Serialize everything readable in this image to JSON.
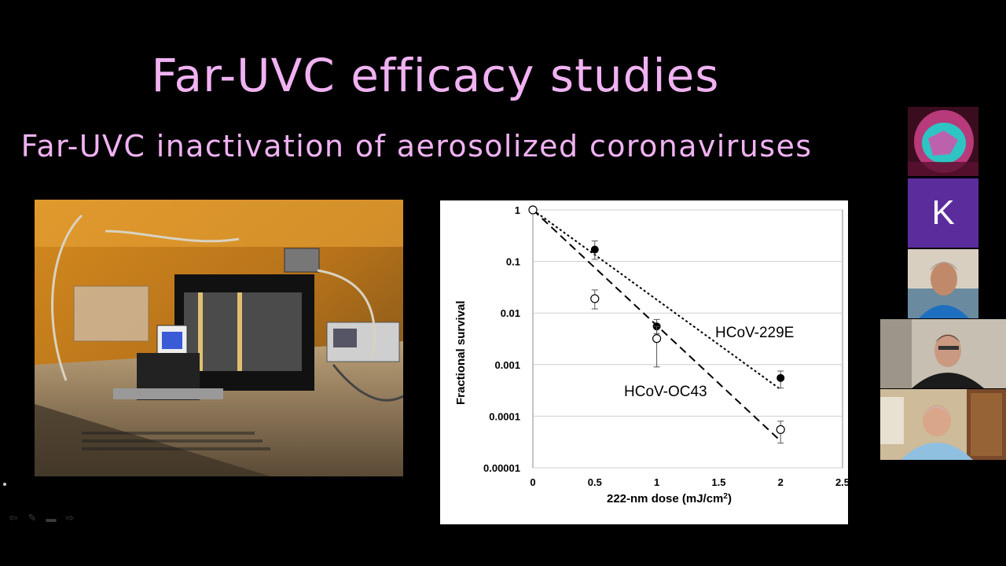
{
  "slide": {
    "title": "Far-UVC efficacy studies",
    "subtitle": "Far-UVC inactivation of aerosolized coronaviruses",
    "title_color": "#f0b2f2"
  },
  "photo": {
    "description_icon": "lab-apparatus-photo"
  },
  "chart_data": {
    "type": "scatter",
    "xlabel": "222-nm dose (mJ/cm²)",
    "xlabel_main": "222-nm dose (mJ/cm",
    "xlabel_sup": "2",
    "xlabel_end": ")",
    "ylabel": "Fractional survival",
    "xlim": [
      0,
      2.5
    ],
    "ylim": [
      1e-05,
      1
    ],
    "yscale": "log",
    "x_ticks": [
      "0",
      "0.5",
      "1",
      "1.5",
      "2",
      "2.5"
    ],
    "y_ticks": [
      "1",
      "0.1",
      "0.01",
      "0.001",
      "0.0001",
      "0.00001"
    ],
    "grid": "horizontal",
    "series": [
      {
        "name": "HCoV-229E",
        "marker": "filled",
        "line": "dotted",
        "points": [
          {
            "x": 0,
            "y": 1,
            "err_lo": 1,
            "err_hi": 1
          },
          {
            "x": 0.5,
            "y": 0.17,
            "err_lo": 0.11,
            "err_hi": 0.25
          },
          {
            "x": 1,
            "y": 0.0055,
            "err_lo": 0.004,
            "err_hi": 0.0075
          },
          {
            "x": 2,
            "y": 0.00055,
            "err_lo": 0.00035,
            "err_hi": 0.00075
          }
        ],
        "fit": [
          [
            0,
            1
          ],
          [
            2,
            0.00033
          ]
        ]
      },
      {
        "name": "HCoV-OC43",
        "marker": "open",
        "line": "dashed",
        "points": [
          {
            "x": 0,
            "y": 1,
            "err_lo": 1,
            "err_hi": 1
          },
          {
            "x": 0.5,
            "y": 0.019,
            "err_lo": 0.012,
            "err_hi": 0.028
          },
          {
            "x": 1,
            "y": 0.0032,
            "err_lo": 0.0009,
            "err_hi": 0.0055
          },
          {
            "x": 2,
            "y": 5.5e-05,
            "err_lo": 3e-05,
            "err_hi": 8e-05
          }
        ],
        "fit": [
          [
            0,
            1
          ],
          [
            2,
            3.3e-05
          ]
        ]
      }
    ],
    "series_labels": [
      "HCoV-229E",
      "HCoV-OC43"
    ]
  },
  "controls": {
    "icons": [
      "prev-arrow-icon",
      "pen-icon",
      "screen-icon",
      "next-arrow-icon"
    ],
    "glyphs": [
      "⇦",
      "✎",
      "▬",
      "⇨"
    ]
  },
  "video": {
    "participants": [
      {
        "id": "screen-share-thumbnail"
      },
      {
        "id": "avatar-k",
        "initial": "K",
        "color": "#5b2d9c"
      },
      {
        "id": "participant-1"
      },
      {
        "id": "participant-2"
      },
      {
        "id": "participant-3"
      }
    ]
  }
}
